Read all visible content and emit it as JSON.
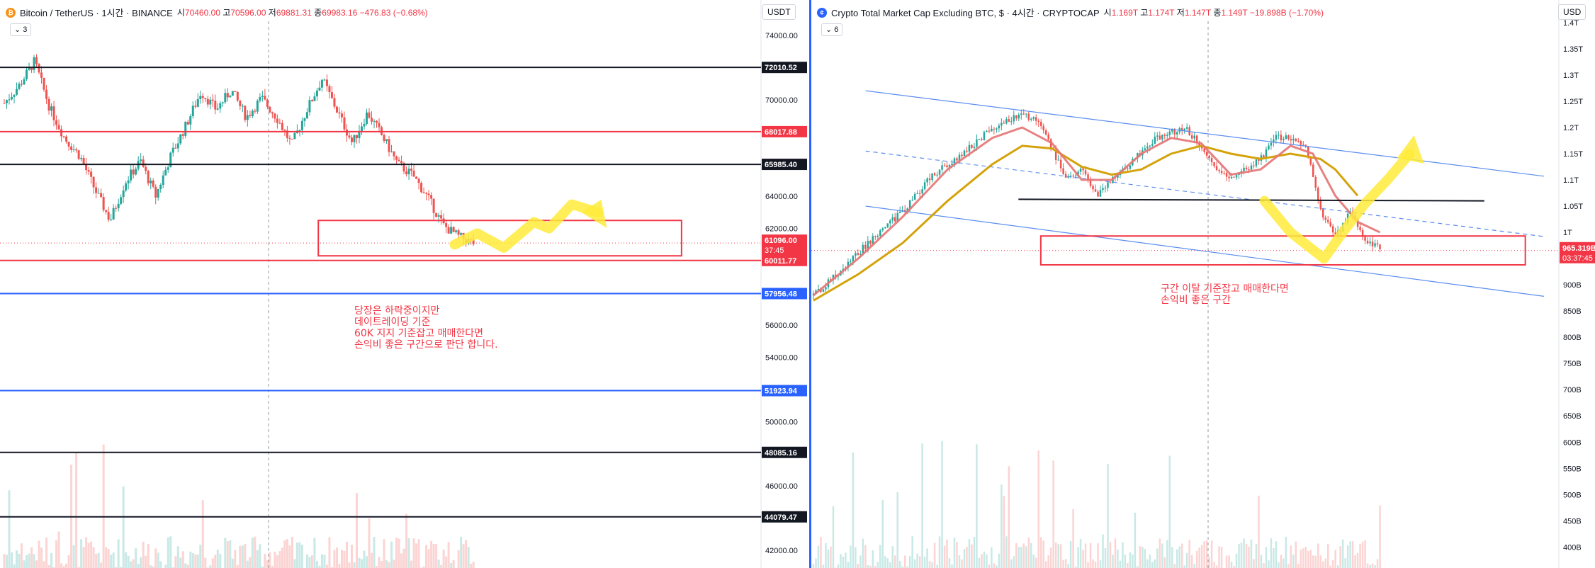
{
  "left": {
    "symbol_icon": "bitcoin-icon",
    "title": "Bitcoin / TetherUS · 1시간 · BINANCE",
    "ohlc": {
      "o_label": "시",
      "o": "70460.00",
      "h_label": "고",
      "h": "70596.00",
      "l_label": "저",
      "l": "69881.31",
      "c_label": "종",
      "c": "69983.16",
      "chg": "−476.83 (−0.68%)"
    },
    "indicator_count": "3",
    "currency": "USDT",
    "chart_data": {
      "type": "candlestick",
      "title": "Bitcoin / TetherUS · 1시간 · BINANCE",
      "ylim": [
        40900,
        76200
      ],
      "y_ticks": [
        74000,
        72000,
        70000,
        68000,
        66000,
        64000,
        62000,
        60000,
        58000,
        56000,
        54000,
        52000,
        50000,
        48000,
        46000,
        44000,
        42000
      ],
      "y_tick_labels": [
        "74000.00",
        "72000.00",
        "70000.00",
        "68000.00",
        "66000.00",
        "64000.00",
        "62000.00",
        "60000.00",
        "58000.00",
        "56000.00",
        "54000.00",
        "52000.00",
        "50000.00",
        "48000.00",
        "46000.00",
        "44000.00",
        "42000.00"
      ],
      "x_range": [
        0,
        100
      ],
      "close_path": [
        [
          0,
          69800
        ],
        [
          2,
          70900
        ],
        [
          4,
          72400
        ],
        [
          6,
          69500
        ],
        [
          8,
          67600
        ],
        [
          10,
          66500
        ],
        [
          12,
          64400
        ],
        [
          14,
          62500
        ],
        [
          16,
          64900
        ],
        [
          18,
          66200
        ],
        [
          20,
          64000
        ],
        [
          22,
          66500
        ],
        [
          24,
          68400
        ],
        [
          26,
          70500
        ],
        [
          28,
          69400
        ],
        [
          30,
          70600
        ],
        [
          32,
          68900
        ],
        [
          34,
          70100
        ],
        [
          36,
          68900
        ],
        [
          38,
          67200
        ],
        [
          40,
          69400
        ],
        [
          42,
          71300
        ],
        [
          44,
          69300
        ],
        [
          46,
          67300
        ],
        [
          48,
          69200
        ],
        [
          50,
          67700
        ],
        [
          52,
          66000
        ],
        [
          54,
          65300
        ],
        [
          56,
          63900
        ],
        [
          58,
          62200
        ],
        [
          60,
          61500
        ],
        [
          62,
          61100
        ]
      ],
      "horizontal_levels": [
        {
          "price": 72010.52,
          "label": "72010.52",
          "color": "#131722"
        },
        {
          "price": 68017.88,
          "label": "68017.88",
          "color": "#f23645"
        },
        {
          "price": 65985.4,
          "label": "65985.40",
          "color": "#131722"
        },
        {
          "price": 60011.77,
          "label": "60011.77",
          "color": "#f23645"
        },
        {
          "price": 57956.48,
          "label": "57956.48",
          "color": "#2962ff"
        },
        {
          "price": 51923.94,
          "label": "51923.94",
          "color": "#2962ff"
        },
        {
          "price": 48085.16,
          "label": "48085.16",
          "color": "#131722"
        },
        {
          "price": 44079.47,
          "label": "44079.47",
          "color": "#131722"
        }
      ],
      "last_price": {
        "price": 61096.0,
        "label": "61096.00",
        "countdown": "37:45",
        "color": "#f23645"
      },
      "zone": {
        "x": [
          41.5,
          89.5
        ],
        "y": [
          60300,
          62500
        ],
        "color": "#f23645"
      },
      "arrow_path": [
        [
          59.5,
          61000
        ],
        [
          62.5,
          61700
        ],
        [
          66,
          60800
        ],
        [
          70,
          62400
        ],
        [
          72,
          62000
        ],
        [
          75,
          63500
        ],
        [
          78.5,
          63000
        ]
      ],
      "annotation": [
        "당장은 하락중이지만",
        "데이트레이딩 기준",
        "60K 지지 기준잡고 매매한다면",
        "손익비 좋은 구간으로 판단 합니다."
      ]
    }
  },
  "right": {
    "symbol_icon": "coin-icon",
    "title": "Crypto Total Market Cap Excluding BTC, $ · 4시간 · CRYPTOCAP",
    "ohlc": {
      "o_label": "시",
      "o": "1.169T",
      "h_label": "고",
      "h": "1.174T",
      "l_label": "저",
      "l": "1.147T",
      "c_label": "종",
      "c": "1.149T",
      "chg": "−19.898B (−1.70%)"
    },
    "indicator_count": "6",
    "currency": "USD",
    "chart_data": {
      "type": "candlestick",
      "title": "Crypto Total Market Cap Excluding BTC, $ · 4시간 · CRYPTOCAP",
      "ylim": [
        0.36,
        1.443
      ],
      "y_ticks": [
        1.4,
        1.35,
        1.3,
        1.25,
        1.2,
        1.15,
        1.1,
        1.05,
        1.0,
        0.9,
        0.85,
        0.8,
        0.75,
        0.7,
        0.65,
        0.6,
        0.55,
        0.5,
        0.45,
        0.4
      ],
      "y_tick_labels": [
        "1.4T",
        "1.35T",
        "1.3T",
        "1.25T",
        "1.2T",
        "1.15T",
        "1.1T",
        "1.05T",
        "1T",
        "900B",
        "850B",
        "800B",
        "750B",
        "700B",
        "650B",
        "600B",
        "550B",
        "500B",
        "450B",
        "400B"
      ],
      "x_range": [
        0,
        100
      ],
      "close_path": [
        [
          0,
          0.88
        ],
        [
          4,
          0.93
        ],
        [
          8,
          0.99
        ],
        [
          12,
          1.04
        ],
        [
          16,
          1.11
        ],
        [
          20,
          1.15
        ],
        [
          24,
          1.2
        ],
        [
          28,
          1.225
        ],
        [
          30,
          1.21
        ],
        [
          32,
          1.16
        ],
        [
          34,
          1.1
        ],
        [
          36,
          1.12
        ],
        [
          38,
          1.07
        ],
        [
          40,
          1.1
        ],
        [
          42,
          1.12
        ],
        [
          44,
          1.155
        ],
        [
          46,
          1.18
        ],
        [
          48,
          1.19
        ],
        [
          50,
          1.2
        ],
        [
          52,
          1.16
        ],
        [
          54,
          1.12
        ],
        [
          56,
          1.1
        ],
        [
          58,
          1.12
        ],
        [
          60,
          1.14
        ],
        [
          62,
          1.18
        ],
        [
          64,
          1.18
        ],
        [
          66,
          1.17
        ],
        [
          68,
          1.04
        ],
        [
          70,
          0.99
        ],
        [
          72,
          1.04
        ],
        [
          74,
          0.98
        ],
        [
          76,
          0.97
        ]
      ],
      "ema_red": [
        [
          0,
          0.88
        ],
        [
          6,
          0.95
        ],
        [
          12,
          1.03
        ],
        [
          18,
          1.12
        ],
        [
          24,
          1.18
        ],
        [
          28,
          1.2
        ],
        [
          32,
          1.17
        ],
        [
          36,
          1.1
        ],
        [
          40,
          1.1
        ],
        [
          44,
          1.15
        ],
        [
          48,
          1.18
        ],
        [
          52,
          1.17
        ],
        [
          56,
          1.11
        ],
        [
          60,
          1.12
        ],
        [
          64,
          1.165
        ],
        [
          67,
          1.15
        ],
        [
          70,
          1.07
        ],
        [
          73,
          1.02
        ],
        [
          76,
          1.0
        ]
      ],
      "ema_gold": [
        [
          0,
          0.87
        ],
        [
          6,
          0.92
        ],
        [
          12,
          0.98
        ],
        [
          18,
          1.06
        ],
        [
          24,
          1.13
        ],
        [
          28,
          1.165
        ],
        [
          32,
          1.16
        ],
        [
          36,
          1.125
        ],
        [
          40,
          1.11
        ],
        [
          44,
          1.12
        ],
        [
          48,
          1.15
        ],
        [
          52,
          1.165
        ],
        [
          56,
          1.15
        ],
        [
          60,
          1.14
        ],
        [
          64,
          1.15
        ],
        [
          68,
          1.14
        ],
        [
          70,
          1.12
        ],
        [
          73,
          1.07
        ]
      ],
      "channel_upper": [
        [
          7,
          1.27
        ],
        [
          98,
          1.107
        ]
      ],
      "channel_mid": [
        [
          7,
          1.155
        ],
        [
          98,
          0.992
        ]
      ],
      "channel_lower": [
        [
          7,
          1.05
        ],
        [
          98,
          0.878
        ]
      ],
      "black_level": [
        [
          27.5,
          1.063
        ],
        [
          90,
          1.06
        ]
      ],
      "zone": {
        "x": [
          30.5,
          95.5
        ],
        "y": [
          0.938,
          0.993
        ],
        "color": "#f23645"
      },
      "last_price": {
        "price": 0.9653,
        "label": "965.319B",
        "countdown": "03:37:45",
        "color": "#f23645"
      },
      "arrow_path": [
        [
          60.5,
          1.06
        ],
        [
          64,
          1.0
        ],
        [
          68.5,
          0.95
        ],
        [
          71,
          1.0
        ],
        [
          74,
          1.055
        ],
        [
          77,
          1.1
        ],
        [
          80,
          1.15
        ]
      ],
      "annotation": [
        "구간 이탈 기준잡고 매매한다면",
        "손익비 좋은 구간"
      ]
    }
  }
}
